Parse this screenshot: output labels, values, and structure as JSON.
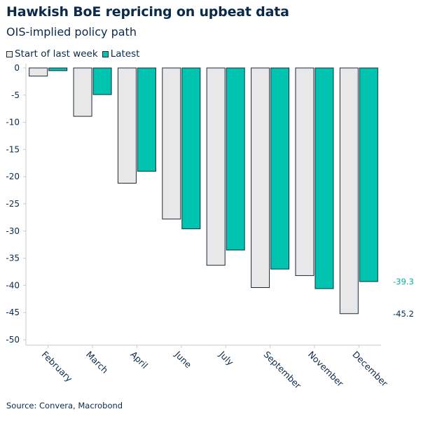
{
  "chart_data": {
    "type": "bar",
    "title": "Hawkish BoE repricing on upbeat data",
    "subtitle": "OIS-implied policy path",
    "categories": [
      "February",
      "March",
      "April",
      "June",
      "July",
      "September",
      "November",
      "December"
    ],
    "series": [
      {
        "name": "Start of last week",
        "color": "#e8e8e8",
        "stroke": "#1a2b3c",
        "values": [
          -1.5,
          -8.9,
          -21.2,
          -27.8,
          -36.3,
          -40.4,
          -38.2,
          -45.2
        ]
      },
      {
        "name": "Latest",
        "color": "#00c4b0",
        "stroke": "#1a2b3c",
        "values": [
          -0.5,
          -4.9,
          -19.0,
          -29.6,
          -33.5,
          -37.0,
          -40.6,
          -39.3
        ]
      }
    ],
    "end_labels": [
      {
        "series": "Latest",
        "text": "-39.3",
        "color": "#00b3a3"
      },
      {
        "series": "Start of last week",
        "text": "-45.2",
        "color": "#0b2a4a"
      }
    ],
    "yticks": [
      "0",
      "-5",
      "-10",
      "-15",
      "-20",
      "-25",
      "-30",
      "-35",
      "-40",
      "-45",
      "-50"
    ],
    "ylim": [
      -51,
      0
    ],
    "grid": false,
    "legend_position": "top-left",
    "source": "Source: Convera, Macrobond"
  }
}
